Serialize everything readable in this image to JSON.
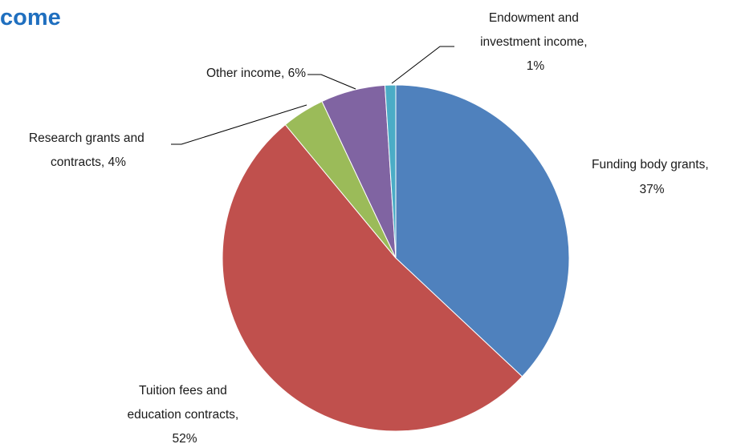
{
  "chart_data": {
    "type": "pie",
    "title": "come",
    "slices": [
      {
        "id": "funding",
        "label_lines": [
          "Funding body grants,",
          "37%"
        ],
        "category": "Funding body grants",
        "value": 37,
        "color": "#4f81bd"
      },
      {
        "id": "tuition",
        "label_lines": [
          "Tuition fees and",
          "education contracts,",
          "52%"
        ],
        "category": "Tuition fees and education contracts",
        "value": 52,
        "color": "#c0504d"
      },
      {
        "id": "research",
        "label_lines": [
          "Research grants and",
          "contracts, 4%"
        ],
        "category": "Research grants and contracts",
        "value": 4,
        "color": "#9bbb59"
      },
      {
        "id": "other",
        "label_lines": [
          "Other income, 6%"
        ],
        "category": "Other income",
        "value": 6,
        "color": "#8064a2"
      },
      {
        "id": "endowment",
        "label_lines": [
          "Endowment and",
          "investment income,",
          "1%"
        ],
        "category": "Endowment and investment income",
        "value": 1,
        "color": "#4bacc6"
      }
    ]
  }
}
